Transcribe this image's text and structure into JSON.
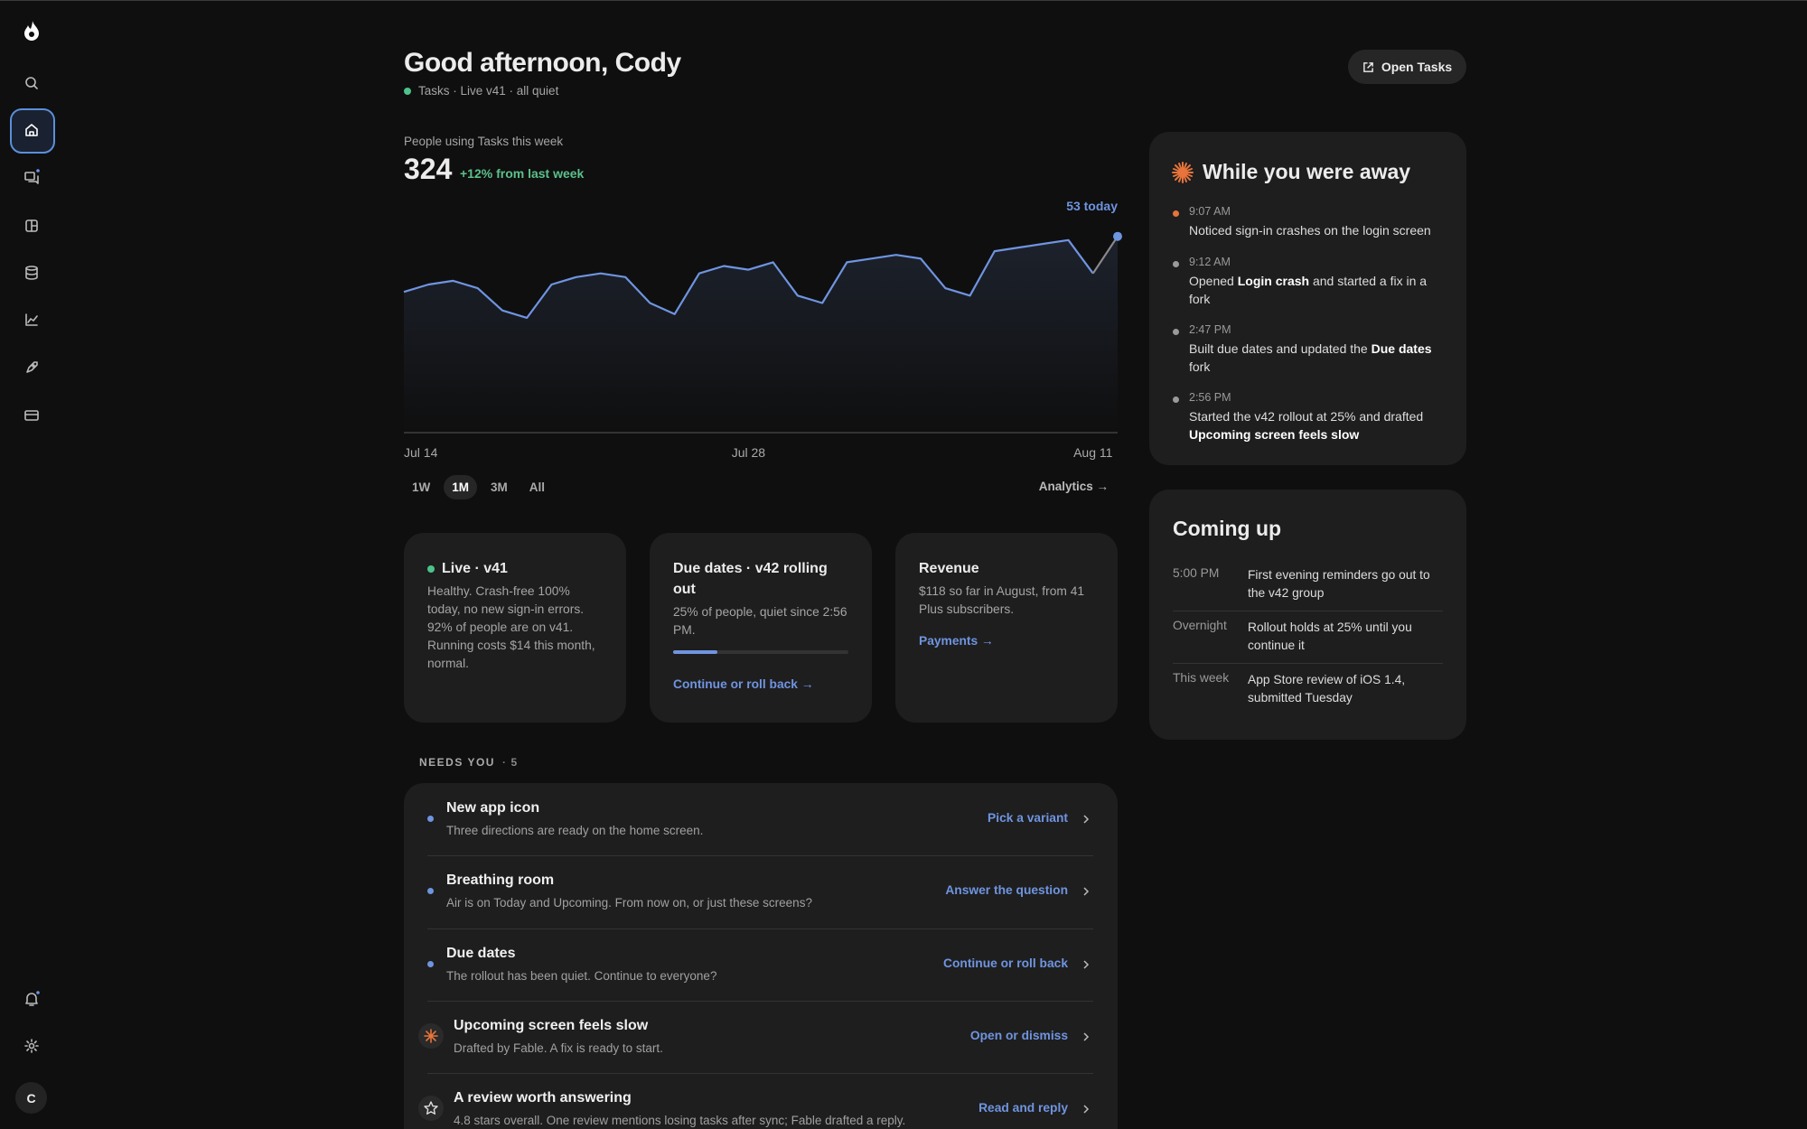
{
  "sidebar": {
    "avatar": "C"
  },
  "header": {
    "title": "Good afternoon, Cody",
    "status": "Tasks · Live v41 · all quiet",
    "status_color": "#4cc38a",
    "button": "Open Tasks"
  },
  "chart_data": {
    "type": "line",
    "title": "People using Tasks this week",
    "total": 324,
    "change": "+12% from last week",
    "annotation": "53 today",
    "categories": [
      "Jul 14",
      null,
      null,
      null,
      null,
      null,
      null,
      null,
      null,
      null,
      null,
      null,
      null,
      null,
      "Jul 28",
      null,
      null,
      null,
      null,
      null,
      null,
      null,
      null,
      null,
      null,
      null,
      null,
      null,
      "Aug 11",
      null
    ],
    "values": [
      38,
      40,
      41,
      39,
      33,
      31,
      40,
      42,
      43,
      42,
      35,
      32,
      43,
      45,
      44,
      46,
      37,
      35,
      46,
      47,
      48,
      47,
      39,
      37,
      49,
      50,
      51,
      52,
      43,
      53
    ],
    "color": "#6f94e0",
    "ylim": [
      0,
      60
    ]
  },
  "ranges": {
    "options": [
      "1W",
      "1M",
      "3M",
      "All"
    ],
    "selected": 1,
    "link": "Analytics →"
  },
  "cards": [
    {
      "title": "Live · v41",
      "dot_color": "#4cc38a",
      "body": "Healthy. Crash-free 100% today, no new sign-in errors. 92% of people are on v41. Running costs $14 this month, normal."
    },
    {
      "title": "Due dates · v42 rolling out",
      "body": "25% of people, quiet since 2:56 PM.",
      "progress": 25,
      "link": "Continue or roll back →"
    },
    {
      "title": "Revenue",
      "body": "$118 so far in August, from 41 Plus subscribers.",
      "link": "Payments →"
    }
  ],
  "needs_you": {
    "label": "NEEDS YOU",
    "count": 5,
    "items": [
      {
        "marker": "dot",
        "title": "New app icon",
        "description": "Three directions are ready on the home screen.",
        "action": "Pick a variant"
      },
      {
        "marker": "dot",
        "title": "Breathing room",
        "description": "Air is on Today and Upcoming. From now on, or just these screens?",
        "action": "Answer the question"
      },
      {
        "marker": "dot",
        "title": "Due dates",
        "description": "The rollout has been quiet. Continue to everyone?",
        "action": "Continue or roll back"
      },
      {
        "marker": "fable",
        "title": "Upcoming screen feels slow",
        "description": "Drafted by Fable. A fix is ready to start.",
        "action": "Open or dismiss"
      },
      {
        "marker": "star",
        "title": "A review worth answering",
        "description": "4.8 stars overall. One review mentions losing tasks after sync; Fable drafted a reply.",
        "action": "Read and reply"
      }
    ]
  },
  "away": {
    "title": "While you were away",
    "events": [
      {
        "time": "9:07 AM",
        "dot_color": "#e8743b",
        "parts": [
          {
            "text": "Noticed sign-in crashes on the login screen"
          }
        ]
      },
      {
        "time": "9:12 AM",
        "dot_color": "#9a9a9a",
        "parts": [
          {
            "text": "Opened "
          },
          {
            "text": "Login crash",
            "bold": true
          },
          {
            "text": " and started a fix in a fork"
          }
        ]
      },
      {
        "time": "2:47 PM",
        "dot_color": "#9a9a9a",
        "parts": [
          {
            "text": "Built due dates and updated the "
          },
          {
            "text": "Due dates",
            "bold": true
          },
          {
            "text": " fork"
          }
        ]
      },
      {
        "time": "2:56 PM",
        "dot_color": "#9a9a9a",
        "parts": [
          {
            "text": "Started the v42 rollout at 25% and drafted "
          },
          {
            "text": "Upcoming screen feels slow",
            "bold": true
          }
        ]
      }
    ]
  },
  "coming_up": {
    "title": "Coming up",
    "rows": [
      {
        "when": "5:00 PM",
        "text": "First evening reminders go out to the v42 group"
      },
      {
        "when": "Overnight",
        "text": "Rollout holds at 25% until you continue it"
      },
      {
        "when": "This week",
        "text": "App Store review of iOS 1.4, submitted Tuesday"
      }
    ]
  }
}
